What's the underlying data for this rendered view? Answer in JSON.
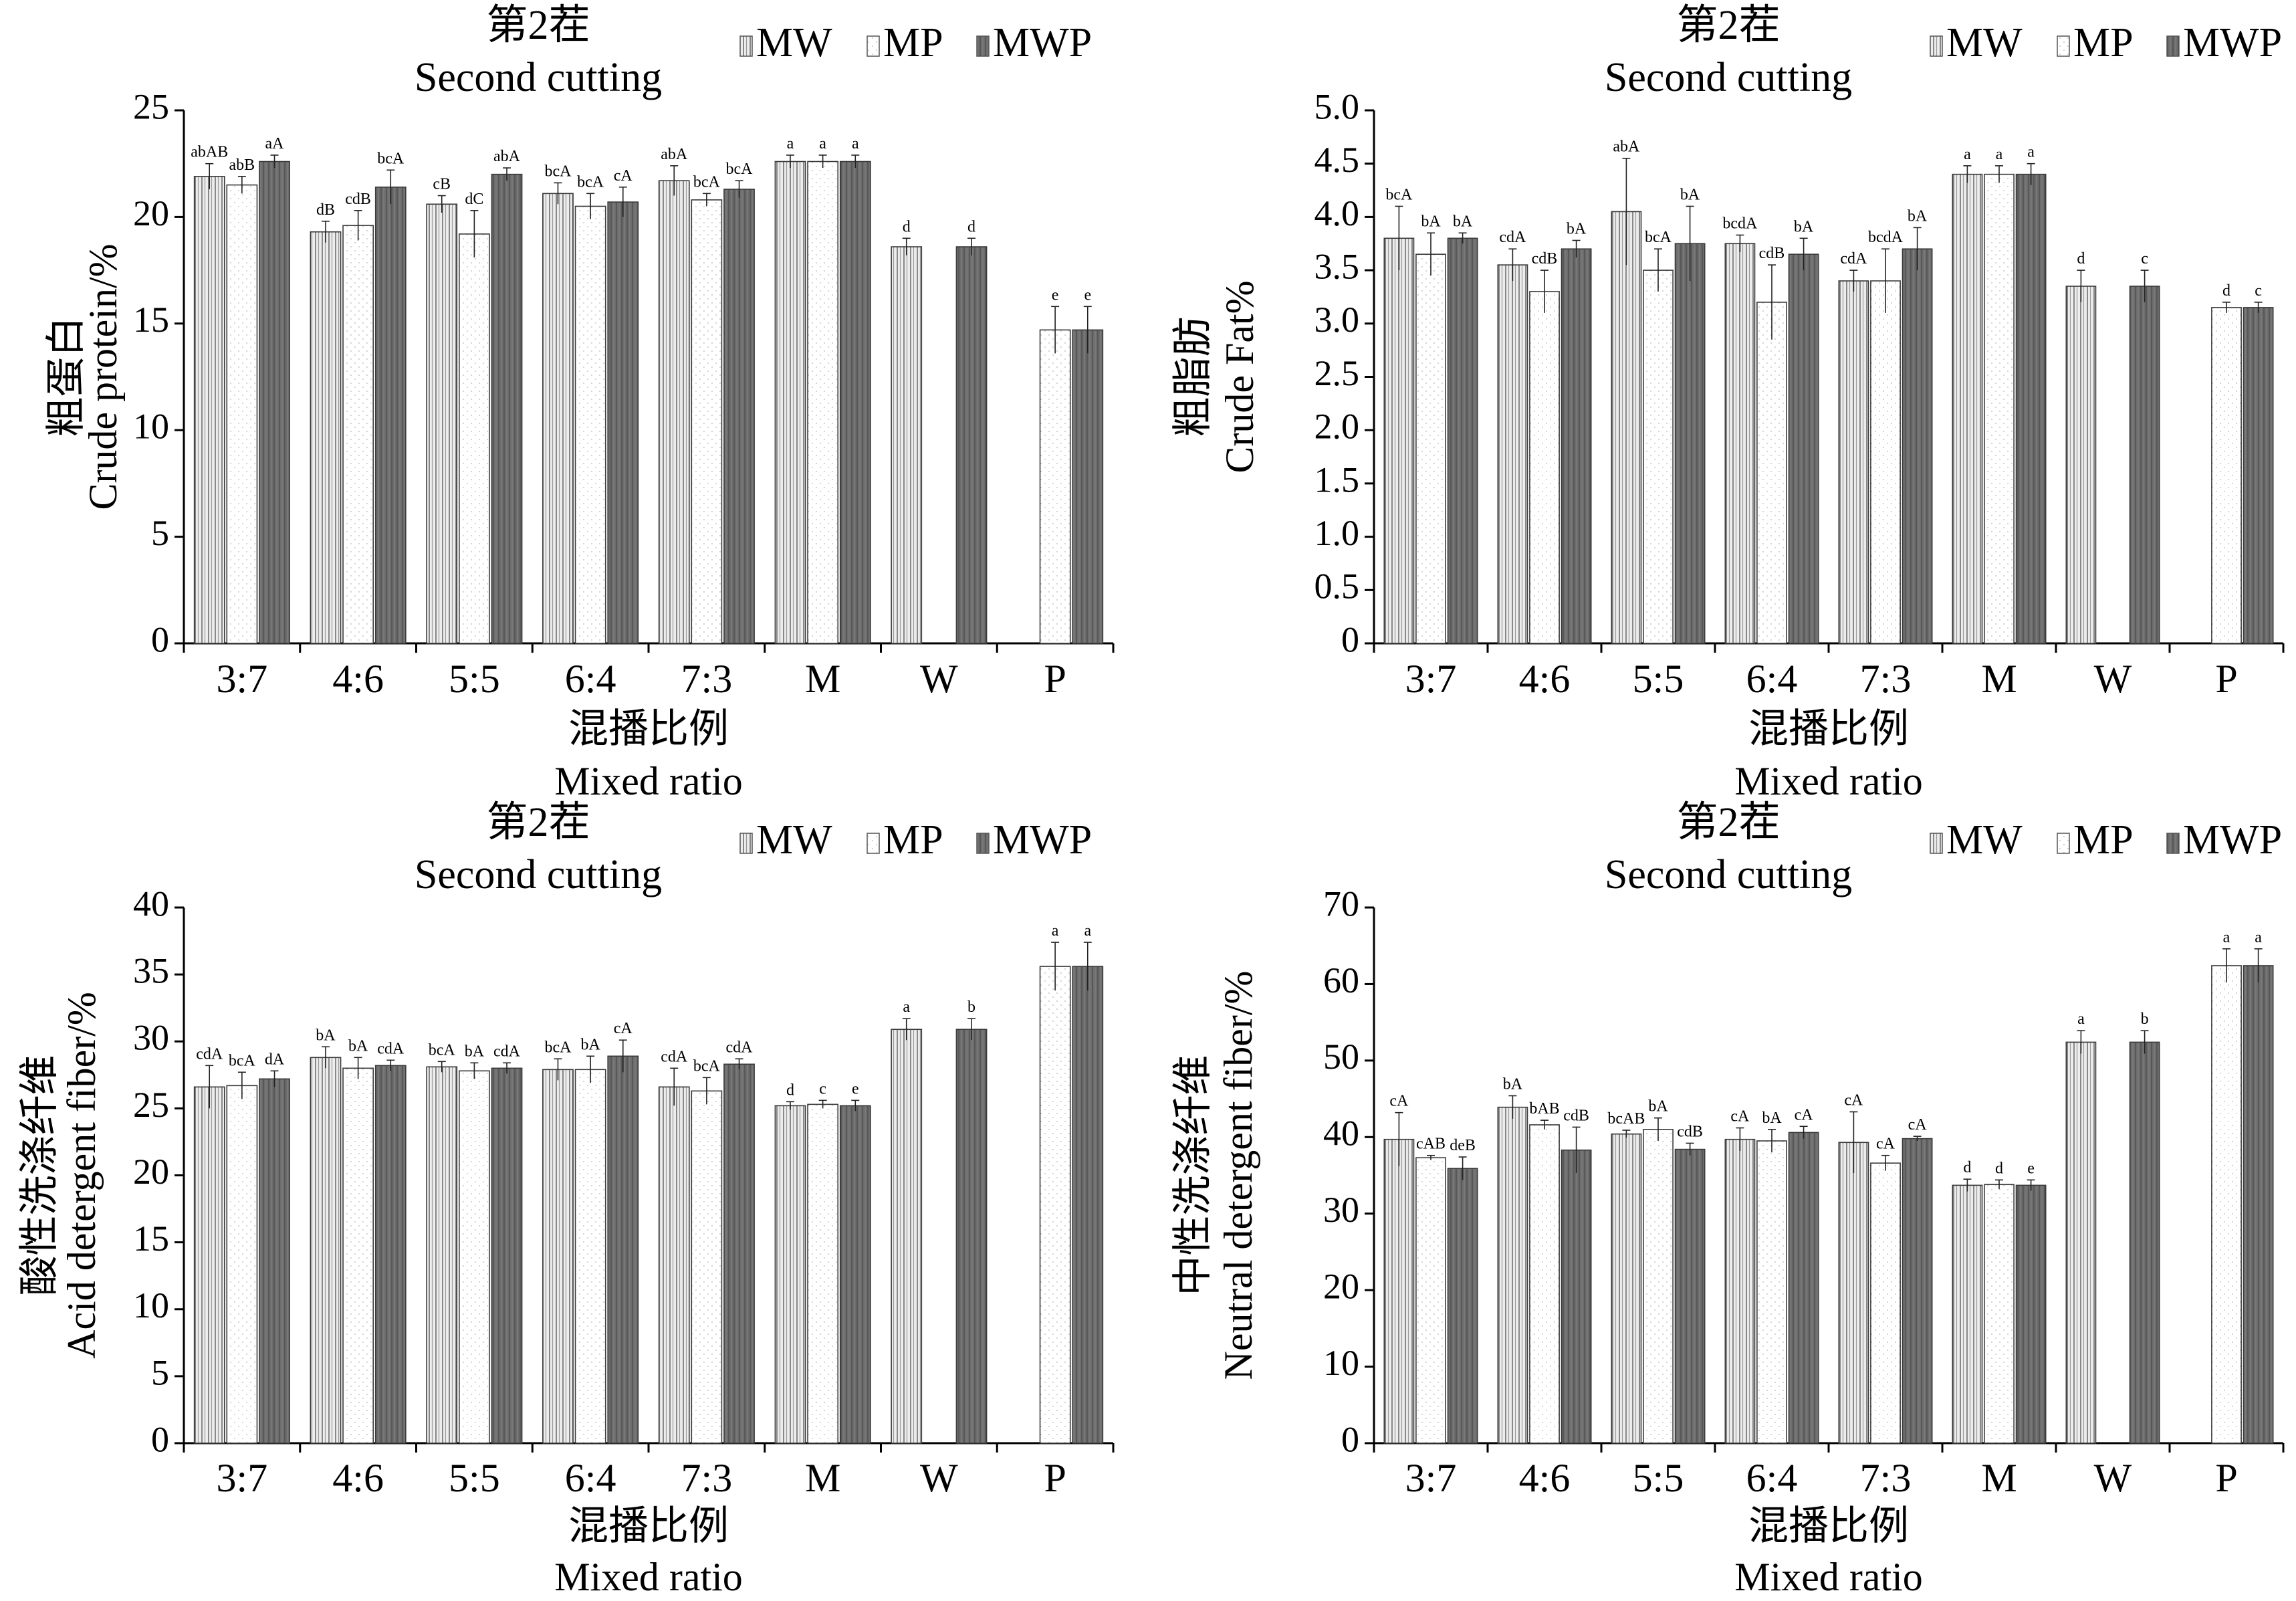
{
  "colors": {
    "MW": "#ebebeb",
    "MP": "#ffffff",
    "MWP": "#6a6a6a",
    "axis": "#000000"
  },
  "legend": {
    "items": [
      {
        "key": "MW",
        "label": "MW"
      },
      {
        "key": "MP",
        "label": "MP"
      },
      {
        "key": "MWP",
        "label": "MWP"
      }
    ]
  },
  "chart_data": [
    {
      "type": "bar",
      "title": "第2茬",
      "subtitle": "Second cutting",
      "ylabel_cn": "粗蛋白",
      "ylabel_en": "Crude protein/%",
      "xlabel_cn": "混播比例",
      "xlabel_en": "Mixed ratio",
      "categories": [
        "3:7",
        "4:6",
        "5:5",
        "6:4",
        "7:3",
        "M",
        "W",
        "P"
      ],
      "ylim": [
        0,
        25
      ],
      "yticks": [
        0,
        5,
        10,
        15,
        20,
        25
      ],
      "ytick_labels": [
        "0",
        "5",
        "10",
        "15",
        "20",
        "25"
      ],
      "series": [
        {
          "name": "MW",
          "values": [
            21.9,
            19.3,
            20.6,
            21.1,
            21.7,
            22.6,
            18.6,
            null
          ],
          "errors": [
            0.6,
            0.5,
            0.4,
            0.5,
            0.7,
            0.3,
            0.4,
            null
          ],
          "labels": [
            "abAB",
            "dB",
            "cB",
            "bcA",
            "abA",
            "a",
            "d",
            ""
          ]
        },
        {
          "name": "MP",
          "values": [
            21.5,
            19.6,
            19.2,
            20.5,
            20.8,
            22.6,
            null,
            14.7
          ],
          "errors": [
            0.4,
            0.7,
            1.1,
            0.6,
            0.3,
            0.3,
            null,
            1.1
          ],
          "labels": [
            "abB",
            "cdB",
            "dC",
            "bcA",
            "bcA",
            "a",
            "",
            "e"
          ]
        },
        {
          "name": "MWP",
          "values": [
            22.6,
            21.4,
            22.0,
            20.7,
            21.3,
            22.6,
            18.6,
            14.7
          ],
          "errors": [
            0.3,
            0.8,
            0.3,
            0.7,
            0.4,
            0.3,
            0.4,
            1.1
          ],
          "labels": [
            "aA",
            "bcA",
            "abA",
            "cA",
            "bcA",
            "a",
            "d",
            "e"
          ]
        }
      ]
    },
    {
      "type": "bar",
      "title": "第2茬",
      "subtitle": "Second cutting",
      "ylabel_cn": "粗脂肪",
      "ylabel_en": "Crude Fat%",
      "xlabel_cn": "混播比例",
      "xlabel_en": "Mixed ratio",
      "categories": [
        "3:7",
        "4:6",
        "5:5",
        "6:4",
        "7:3",
        "M",
        "W",
        "P"
      ],
      "ylim": [
        0,
        5
      ],
      "yticks": [
        0,
        0.5,
        1,
        1.5,
        2,
        2.5,
        3,
        3.5,
        4,
        4.5,
        5
      ],
      "ytick_labels": [
        "0",
        "0.5",
        "1.0",
        "1.5",
        "2.0",
        "2.5",
        "3.0",
        "3.5",
        "4.0",
        "4.5",
        "5.0"
      ],
      "series": [
        {
          "name": "MW",
          "values": [
            3.8,
            3.55,
            4.05,
            3.75,
            3.4,
            4.4,
            3.35,
            null
          ],
          "errors": [
            0.3,
            0.15,
            0.5,
            0.08,
            0.1,
            0.08,
            0.15,
            null
          ],
          "labels": [
            "bcA",
            "cdA",
            "abA",
            "bcdA",
            "cdA",
            "a",
            "d",
            ""
          ]
        },
        {
          "name": "MP",
          "values": [
            3.65,
            3.3,
            3.5,
            3.2,
            3.4,
            4.4,
            null,
            3.15
          ],
          "errors": [
            0.2,
            0.2,
            0.2,
            0.35,
            0.3,
            0.08,
            null,
            0.05
          ],
          "labels": [
            "bA",
            "cdB",
            "bcA",
            "cdB",
            "bcdA",
            "a",
            "",
            "d"
          ]
        },
        {
          "name": "MWP",
          "values": [
            3.8,
            3.7,
            3.75,
            3.65,
            3.7,
            4.4,
            3.35,
            3.15
          ],
          "errors": [
            0.05,
            0.08,
            0.35,
            0.15,
            0.2,
            0.1,
            0.15,
            0.05
          ],
          "labels": [
            "bA",
            "bA",
            "bA",
            "bA",
            "bA",
            "a",
            "c",
            "c"
          ]
        }
      ]
    },
    {
      "type": "bar",
      "title": "第2茬",
      "subtitle": "Second cutting",
      "ylabel_cn": "酸性洗涤纤维",
      "ylabel_en": "Acid detergent fiber/%",
      "xlabel_cn": "混播比例",
      "xlabel_en": "Mixed ratio",
      "categories": [
        "3:7",
        "4:6",
        "5:5",
        "6:4",
        "7:3",
        "M",
        "W",
        "P"
      ],
      "ylim": [
        0,
        40
      ],
      "yticks": [
        0,
        5,
        10,
        15,
        20,
        25,
        30,
        35,
        40
      ],
      "ytick_labels": [
        "0",
        "5",
        "10",
        "15",
        "20",
        "25",
        "30",
        "35",
        "40"
      ],
      "series": [
        {
          "name": "MW",
          "values": [
            26.6,
            28.8,
            28.1,
            27.9,
            26.6,
            25.2,
            30.9,
            null
          ],
          "errors": [
            1.6,
            0.8,
            0.4,
            0.8,
            1.4,
            0.3,
            0.8,
            null
          ],
          "labels": [
            "cdA",
            "bA",
            "bcA",
            "bcA",
            "cdA",
            "d",
            "a",
            ""
          ]
        },
        {
          "name": "MP",
          "values": [
            26.7,
            28.0,
            27.8,
            27.9,
            26.3,
            25.3,
            null,
            35.6
          ],
          "errors": [
            1.0,
            0.8,
            0.6,
            1.0,
            1.0,
            0.3,
            null,
            1.8
          ],
          "labels": [
            "bcA",
            "bA",
            "bA",
            "bA",
            "bcA",
            "c",
            "",
            "a"
          ]
        },
        {
          "name": "MWP",
          "values": [
            27.2,
            28.2,
            28.0,
            28.9,
            28.3,
            25.2,
            30.9,
            35.6
          ],
          "errors": [
            0.6,
            0.4,
            0.4,
            1.2,
            0.4,
            0.4,
            0.8,
            1.8
          ],
          "labels": [
            "dA",
            "cdA",
            "cdA",
            "cA",
            "cdA",
            "e",
            "b",
            "a"
          ]
        }
      ]
    },
    {
      "type": "bar",
      "title": "第2茬",
      "subtitle": "Second cutting",
      "ylabel_cn": "中性洗涤纤维",
      "ylabel_en": "Neutral detergent fiber/%",
      "xlabel_cn": "混播比例",
      "xlabel_en": "Mixed ratio",
      "categories": [
        "3:7",
        "4:6",
        "5:5",
        "6:4",
        "7:3",
        "M",
        "W",
        "P"
      ],
      "ylim": [
        0,
        70
      ],
      "yticks": [
        0,
        10,
        20,
        30,
        40,
        50,
        60,
        70
      ],
      "ytick_labels": [
        "0",
        "10",
        "20",
        "30",
        "40",
        "50",
        "60",
        "70"
      ],
      "series": [
        {
          "name": "MW",
          "values": [
            39.7,
            43.9,
            40.4,
            39.7,
            39.3,
            33.7,
            52.4,
            null
          ],
          "errors": [
            3.5,
            1.5,
            0.5,
            1.5,
            4.0,
            0.8,
            1.5,
            null
          ],
          "labels": [
            "cA",
            "bA",
            "bcAB",
            "cA",
            "cA",
            "d",
            "a",
            ""
          ]
        },
        {
          "name": "MP",
          "values": [
            37.3,
            41.6,
            41.0,
            39.5,
            36.6,
            33.8,
            null,
            62.4
          ],
          "errors": [
            0.3,
            0.6,
            1.5,
            1.5,
            1.0,
            0.6,
            null,
            2.2
          ],
          "labels": [
            "cAB",
            "bAB",
            "bA",
            "bA",
            "cA",
            "d",
            "",
            "a"
          ]
        },
        {
          "name": "MWP",
          "values": [
            35.9,
            38.3,
            38.4,
            40.6,
            39.8,
            33.7,
            52.4,
            62.4
          ],
          "errors": [
            1.5,
            3.0,
            0.8,
            0.8,
            0.3,
            0.7,
            1.5,
            2.2
          ],
          "labels": [
            "deB",
            "cdB",
            "cdB",
            "cA",
            "cA",
            "e",
            "b",
            "a"
          ]
        }
      ]
    }
  ]
}
